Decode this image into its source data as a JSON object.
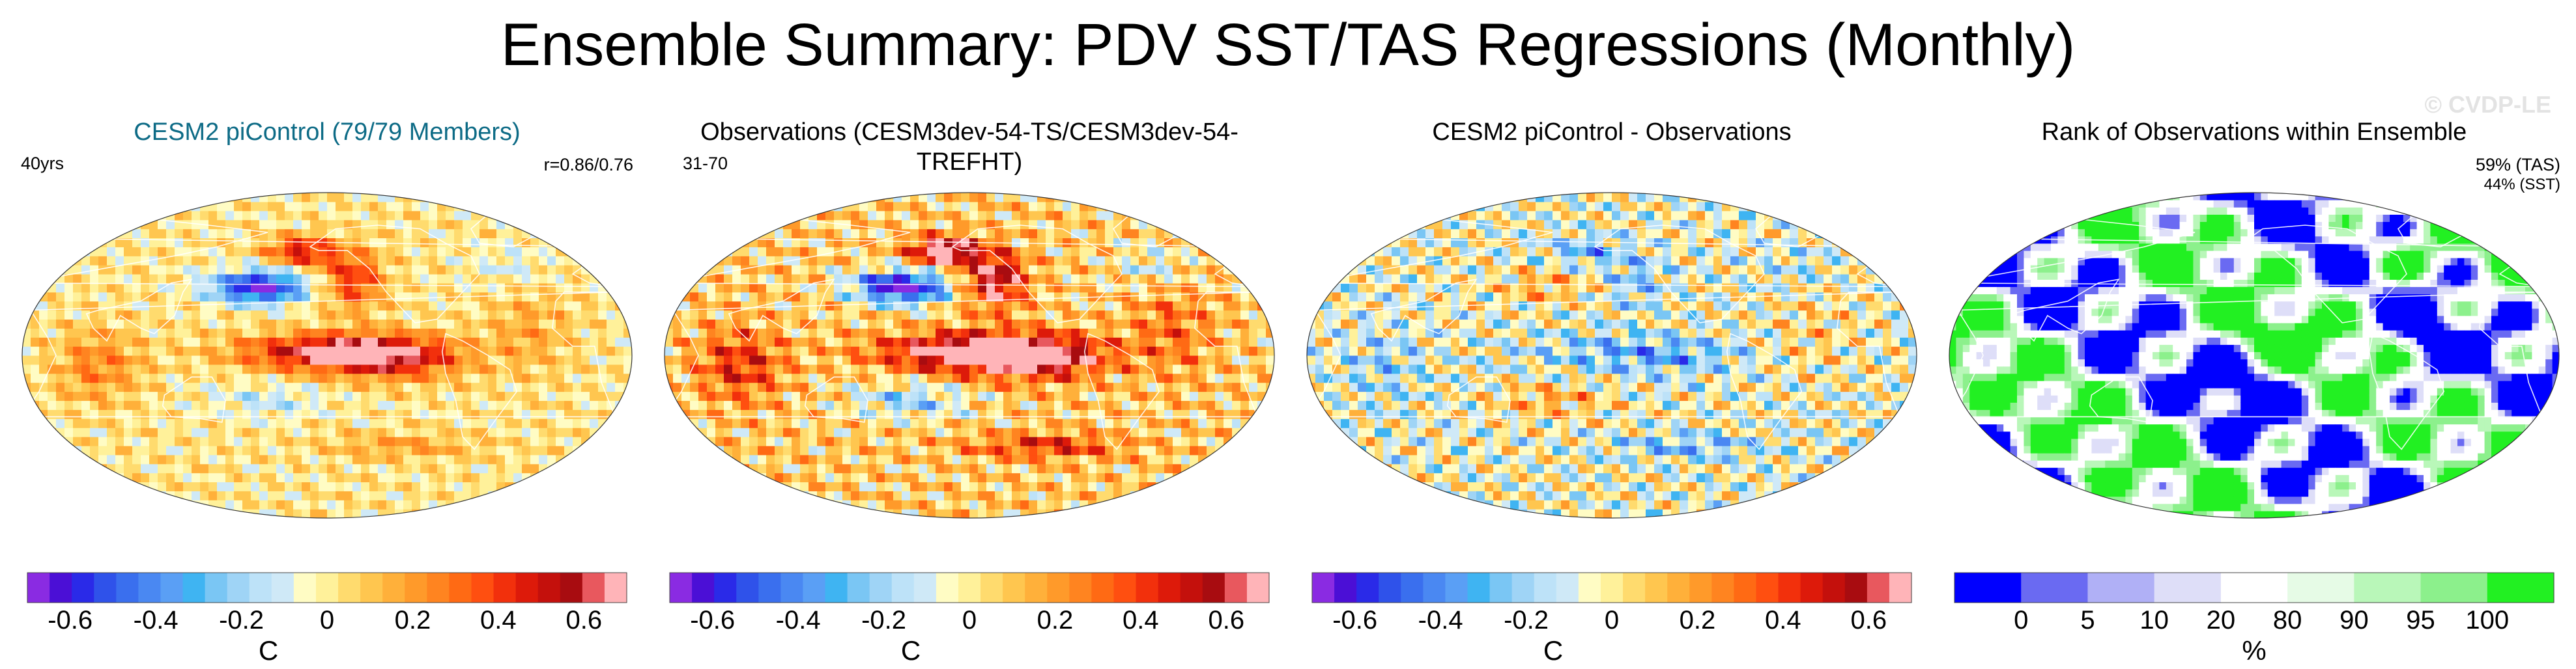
{
  "title": "Ensemble Summary: PDV SST/TAS Regressions (Monthly)",
  "watermark": "© CVDP-LE",
  "chart_data": [
    {
      "type": "heatmap",
      "title": "CESM2 piControl (79/79 Members)",
      "top_left": "40yrs",
      "top_right": "r=0.86/0.76",
      "units": "C",
      "colorbar": {
        "levels": [
          -0.7,
          -0.65,
          -0.6,
          -0.55,
          -0.5,
          -0.45,
          -0.4,
          -0.35,
          -0.3,
          -0.25,
          -0.2,
          -0.15,
          -0.1,
          -0.05,
          0,
          0.05,
          0.1,
          0.15,
          0.2,
          0.25,
          0.3,
          0.35,
          0.4,
          0.45,
          0.5,
          0.55,
          0.6,
          0.65,
          0.7
        ],
        "tick_labels": [
          "-0.6",
          "-0.4",
          "-0.2",
          "0",
          "0.2",
          "0.4",
          "0.6"
        ],
        "tick_values": [
          -0.6,
          -0.4,
          -0.2,
          0,
          0.2,
          0.4,
          0.6
        ],
        "colors": [
          "#8a2be2",
          "#4b0fd6",
          "#2a2ae8",
          "#2f52ea",
          "#3a6fee",
          "#4a88f2",
          "#5a9ff5",
          "#3fb4f2",
          "#7ac6f4",
          "#9fd4f6",
          "#bde2f8",
          "#cfe9f7",
          "#fffcc4",
          "#fff19a",
          "#ffdb6e",
          "#ffc64f",
          "#ffb03a",
          "#ff9a2a",
          "#ff8420",
          "#ff6a14",
          "#ff4f10",
          "#f2300c",
          "#dd1a0a",
          "#c4100c",
          "#a80c10",
          "#e8585e",
          "#ffb4b8"
        ]
      }
    },
    {
      "type": "heatmap",
      "title": "Observations (CESM3dev-54-TS/CESM3dev-54-TREFHT)",
      "top_left": "31-70",
      "units": "C",
      "colorbar": {
        "tick_labels": [
          "-0.6",
          "-0.4",
          "-0.2",
          "0",
          "0.2",
          "0.4",
          "0.6"
        ],
        "tick_values": [
          -0.6,
          -0.4,
          -0.2,
          0,
          0.2,
          0.4,
          0.6
        ]
      }
    },
    {
      "type": "heatmap",
      "title": "CESM2 piControl - Observations",
      "units": "C",
      "colorbar": {
        "tick_labels": [
          "-0.6",
          "-0.4",
          "-0.2",
          "0",
          "0.2",
          "0.4",
          "0.6"
        ],
        "tick_values": [
          -0.6,
          -0.4,
          -0.2,
          0,
          0.2,
          0.4,
          0.6
        ]
      }
    },
    {
      "type": "heatmap",
      "title": "Rank of Observations within Ensemble",
      "top_right": "59% (TAS)",
      "top_right_2": "44% (SST)",
      "units": "%",
      "colorbar": {
        "tick_labels": [
          "0",
          "5",
          "10",
          "20",
          "80",
          "90",
          "95",
          "100"
        ],
        "tick_values": [
          0,
          5,
          10,
          20,
          80,
          90,
          95,
          100
        ],
        "colors": [
          "#0000ff",
          "#6a6af2",
          "#b0b0f6",
          "#dedef8",
          "#ffffff",
          "#e6fbe6",
          "#b9f7b9",
          "#8cf08c",
          "#22f022"
        ]
      }
    }
  ]
}
